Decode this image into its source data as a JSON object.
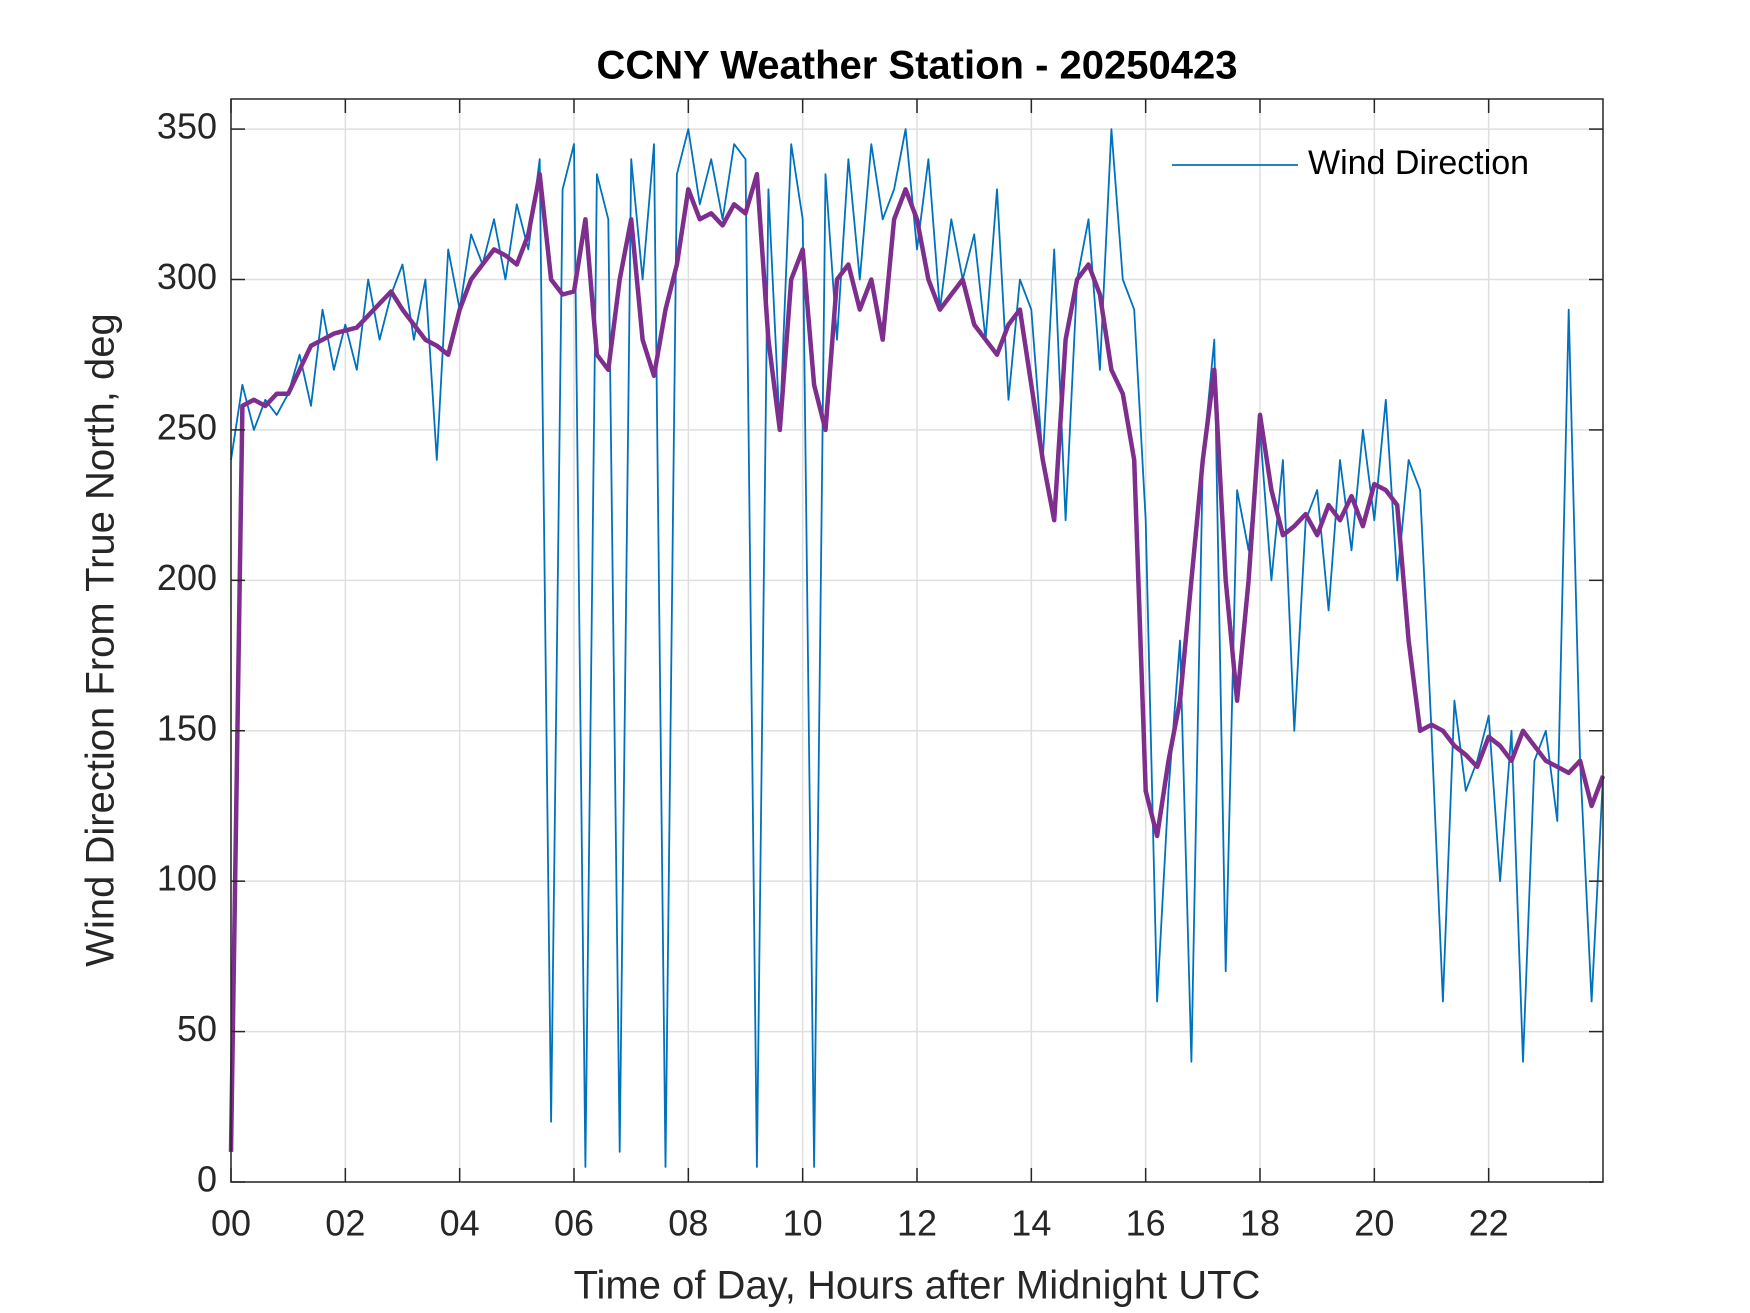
{
  "chart_data": {
    "type": "line",
    "title": "CCNY Weather Station - 20250423",
    "xlabel": "Time of Day, Hours after Midnight UTC",
    "ylabel": "Wind Direction From True North, deg",
    "x": [
      0,
      0.2,
      0.4,
      0.6,
      0.8,
      1,
      1.2,
      1.4,
      1.6,
      1.8,
      2,
      2.2,
      2.4,
      2.6,
      2.8,
      3,
      3.2,
      3.4,
      3.6,
      3.8,
      4,
      4.2,
      4.4,
      4.6,
      4.8,
      5,
      5.2,
      5.4,
      5.6,
      5.8,
      6,
      6.2,
      6.4,
      6.6,
      6.8,
      7,
      7.2,
      7.4,
      7.6,
      7.8,
      8,
      8.2,
      8.4,
      8.6,
      8.8,
      9,
      9.2,
      9.4,
      9.6,
      9.8,
      10,
      10.2,
      10.4,
      10.6,
      10.8,
      11,
      11.2,
      11.4,
      11.6,
      11.8,
      12,
      12.2,
      12.4,
      12.6,
      12.8,
      13,
      13.2,
      13.4,
      13.6,
      13.8,
      14,
      14.2,
      14.4,
      14.6,
      14.8,
      15,
      15.2,
      15.4,
      15.6,
      15.8,
      16,
      16.2,
      16.4,
      16.6,
      16.8,
      17,
      17.2,
      17.4,
      17.6,
      17.8,
      18,
      18.2,
      18.4,
      18.6,
      18.8,
      19,
      19.2,
      19.4,
      19.6,
      19.8,
      20,
      20.2,
      20.4,
      20.6,
      20.8,
      21,
      21.2,
      21.4,
      21.6,
      21.8,
      22,
      22.2,
      22.4,
      22.6,
      22.8,
      23,
      23.2,
      23.4,
      23.6,
      23.8,
      24
    ],
    "series": [
      {
        "name": "Wind Direction",
        "color": "#0072bd",
        "values": [
          240,
          265,
          250,
          260,
          255,
          262,
          275,
          258,
          290,
          270,
          285,
          270,
          300,
          280,
          295,
          305,
          280,
          300,
          240,
          310,
          290,
          315,
          305,
          320,
          300,
          325,
          310,
          340,
          20,
          330,
          345,
          5,
          335,
          320,
          10,
          340,
          300,
          345,
          5,
          335,
          350,
          325,
          340,
          320,
          345,
          340,
          5,
          330,
          250,
          345,
          320,
          5,
          335,
          280,
          340,
          300,
          345,
          320,
          330,
          350,
          310,
          340,
          290,
          320,
          300,
          315,
          280,
          330,
          260,
          300,
          290,
          240,
          310,
          220,
          300,
          320,
          270,
          350,
          300,
          290,
          220,
          60,
          130,
          180,
          40,
          240,
          280,
          70,
          230,
          210,
          250,
          200,
          240,
          150,
          220,
          230,
          190,
          240,
          210,
          250,
          220,
          260,
          200,
          240,
          230,
          150,
          60,
          160,
          130,
          140,
          155,
          100,
          150,
          40,
          140,
          150,
          120,
          290,
          140,
          60,
          135
        ]
      },
      {
        "color": "#7e2f8e",
        "values": [
          10,
          258,
          260,
          258,
          262,
          262,
          270,
          278,
          280,
          282,
          283,
          284,
          288,
          292,
          296,
          290,
          285,
          280,
          278,
          275,
          290,
          300,
          305,
          310,
          308,
          305,
          315,
          335,
          300,
          295,
          296,
          320,
          275,
          270,
          300,
          320,
          280,
          268,
          290,
          305,
          330,
          320,
          322,
          318,
          325,
          322,
          335,
          280,
          250,
          300,
          310,
          265,
          250,
          300,
          305,
          290,
          300,
          280,
          320,
          330,
          320,
          300,
          290,
          295,
          300,
          285,
          280,
          275,
          285,
          290,
          265,
          240,
          220,
          280,
          300,
          305,
          295,
          270,
          262,
          240,
          130,
          115,
          140,
          160,
          200,
          240,
          270,
          200,
          160,
          200,
          255,
          230,
          215,
          218,
          222,
          215,
          225,
          220,
          228,
          218,
          232,
          230,
          225,
          180,
          150,
          152,
          150,
          145,
          142,
          138,
          148,
          145,
          140,
          150,
          145,
          140,
          138,
          136,
          140,
          125,
          135
        ]
      }
    ],
    "xlim": [
      0,
      24
    ],
    "xticks": [
      {
        "value": 0,
        "label": "00"
      },
      {
        "value": 2,
        "label": "02"
      },
      {
        "value": 4,
        "label": "04"
      },
      {
        "value": 6,
        "label": "06"
      },
      {
        "value": 8,
        "label": "08"
      },
      10,
      12,
      14,
      16,
      18,
      20,
      22
    ],
    "ylim": [
      0,
      360
    ],
    "yticks": [
      0,
      50,
      100,
      150,
      200,
      250,
      300,
      350
    ],
    "grid": true,
    "legend": "northeast"
  }
}
